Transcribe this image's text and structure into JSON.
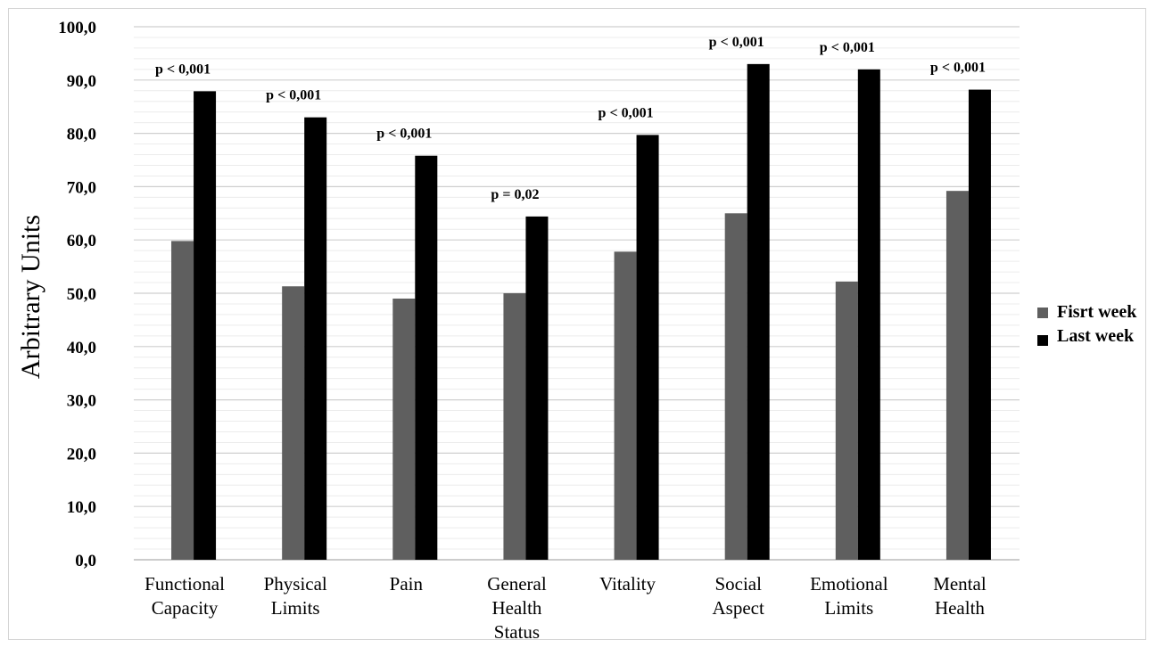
{
  "chart_data": {
    "type": "bar",
    "title": "",
    "xlabel": "",
    "ylabel": "Arbitrary Units",
    "ylim": [
      0,
      100
    ],
    "yticks": [
      "0,0",
      "10,0",
      "20,0",
      "30,0",
      "40,0",
      "50,0",
      "60,0",
      "70,0",
      "80,0",
      "90,0",
      "100,0"
    ],
    "grid": true,
    "legend_position": "right",
    "categories": [
      [
        "Functional",
        "Capacity"
      ],
      [
        "Physical",
        "Limits"
      ],
      [
        "Pain"
      ],
      [
        "General",
        "Health",
        "Status"
      ],
      [
        "Vitality"
      ],
      [
        "Social",
        "Aspect"
      ],
      [
        "Emotional",
        "Limits"
      ],
      [
        "Mental",
        "Health"
      ]
    ],
    "series": [
      {
        "name": "Fisrt week",
        "color": "#5f5f5f",
        "values": [
          59.8,
          51.3,
          49.0,
          50.0,
          57.8,
          65.0,
          52.2,
          69.2
        ]
      },
      {
        "name": "Last week",
        "color": "#000000",
        "values": [
          87.9,
          83.0,
          75.8,
          64.4,
          79.7,
          93.0,
          92.0,
          88.2
        ]
      }
    ],
    "annotations": [
      "p < 0,001",
      "p < 0,001",
      "p < 0,001",
      "p = 0,02",
      "p < 0,001",
      "p < 0,001",
      "p < 0,001",
      "p < 0,001"
    ]
  }
}
